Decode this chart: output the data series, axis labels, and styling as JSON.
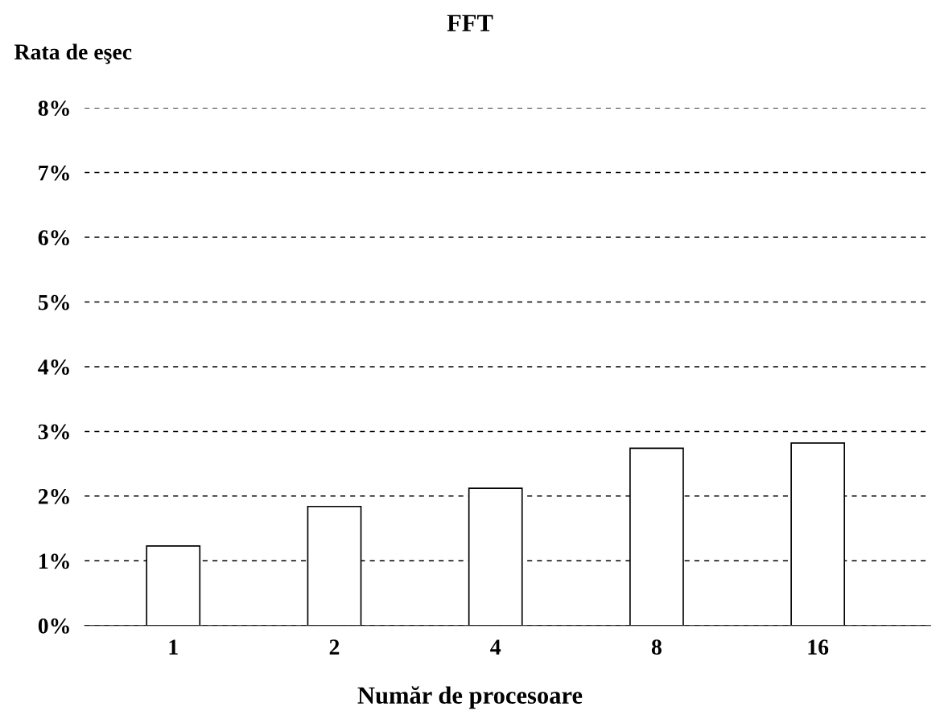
{
  "chart_data": {
    "type": "bar",
    "title": "FFT",
    "ylabel": "Rata de eşec",
    "xlabel": "Număr de procesoare",
    "categories": [
      "1",
      "2",
      "4",
      "8",
      "16"
    ],
    "values": [
      1.23,
      1.84,
      2.12,
      2.74,
      2.82
    ],
    "color": "#ffffff",
    "ylim": [
      0,
      8
    ],
    "yticks": [
      {
        "value": 0,
        "label": "0%"
      },
      {
        "value": 1,
        "label": "1%"
      },
      {
        "value": 2,
        "label": "2%"
      },
      {
        "value": 3,
        "label": "3%"
      },
      {
        "value": 4,
        "label": "4%"
      },
      {
        "value": 5,
        "label": "5%"
      },
      {
        "value": 6,
        "label": "6%"
      },
      {
        "value": 7,
        "label": "7%"
      },
      {
        "value": 8,
        "label": "8%"
      }
    ],
    "grid": "y",
    "legend": false
  }
}
